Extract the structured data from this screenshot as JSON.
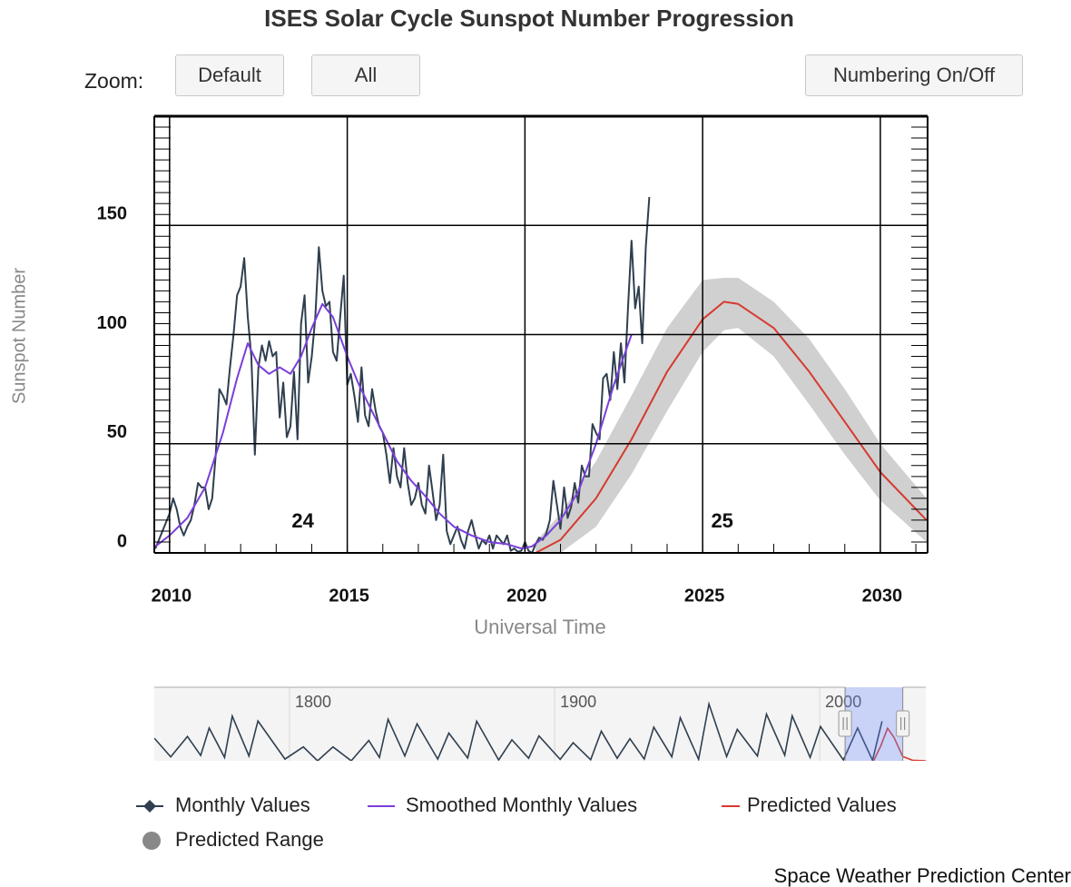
{
  "title": "ISES Solar Cycle Sunspot Number Progression",
  "controls": {
    "zoom": "Zoom:",
    "default": "Default",
    "all": "All",
    "numbering": "Numbering On/Off"
  },
  "footer": "Space Weather Prediction Center",
  "chart_data": [
    {
      "type": "line",
      "xlabel": "Universal Time",
      "ylabel": "Sunspot Number",
      "xlim": [
        2009.57,
        2031.33
      ],
      "ylim": [
        0,
        200
      ],
      "xticks": [
        2010,
        2015,
        2020,
        2025,
        2030
      ],
      "yticks": [
        0,
        50,
        100,
        150
      ],
      "grid": true,
      "annotations": [
        {
          "text": "24",
          "x": 2013.75,
          "y": 14
        },
        {
          "text": "25",
          "x": 2025.55,
          "y": 14
        }
      ],
      "series": [
        {
          "name": "Monthly Values",
          "color": "#2f3f4f",
          "marker": "diamond",
          "x": [
            2009.6,
            2009.8,
            2010.0,
            2010.1,
            2010.2,
            2010.3,
            2010.4,
            2010.5,
            2010.6,
            2010.7,
            2010.8,
            2010.9,
            2011.0,
            2011.1,
            2011.2,
            2011.3,
            2011.4,
            2011.5,
            2011.6,
            2011.7,
            2011.8,
            2011.9,
            2012.0,
            2012.1,
            2012.2,
            2012.3,
            2012.4,
            2012.5,
            2012.6,
            2012.7,
            2012.8,
            2012.9,
            2013.0,
            2013.1,
            2013.2,
            2013.3,
            2013.4,
            2013.5,
            2013.6,
            2013.7,
            2013.8,
            2013.9,
            2014.0,
            2014.1,
            2014.2,
            2014.3,
            2014.4,
            2014.5,
            2014.6,
            2014.7,
            2014.8,
            2014.9,
            2015.0,
            2015.1,
            2015.2,
            2015.3,
            2015.4,
            2015.5,
            2015.6,
            2015.7,
            2015.8,
            2015.9,
            2016.0,
            2016.1,
            2016.2,
            2016.3,
            2016.4,
            2016.5,
            2016.6,
            2016.7,
            2016.8,
            2016.9,
            2017.0,
            2017.1,
            2017.2,
            2017.3,
            2017.4,
            2017.5,
            2017.6,
            2017.7,
            2017.8,
            2017.9,
            2018.0,
            2018.1,
            2018.2,
            2018.3,
            2018.4,
            2018.5,
            2018.6,
            2018.7,
            2018.8,
            2018.9,
            2019.0,
            2019.1,
            2019.2,
            2019.3,
            2019.4,
            2019.5,
            2019.6,
            2019.7,
            2019.8,
            2019.9,
            2020.0,
            2020.1,
            2020.2,
            2020.3,
            2020.4,
            2020.5,
            2020.6,
            2020.7,
            2020.8,
            2020.9,
            2021.0,
            2021.1,
            2021.2,
            2021.3,
            2021.4,
            2021.5,
            2021.6,
            2021.7,
            2021.8,
            2021.9,
            2022.0,
            2022.1,
            2022.2,
            2022.3,
            2022.4,
            2022.5,
            2022.6,
            2022.7,
            2022.8,
            2022.9,
            2023.0,
            2023.1,
            2023.2,
            2023.3,
            2023.4,
            2023.5
          ],
          "values": [
            2,
            10,
            18,
            25,
            20,
            12,
            8,
            12,
            15,
            22,
            32,
            30,
            30,
            20,
            25,
            45,
            75,
            72,
            68,
            85,
            100,
            118,
            122,
            135,
            108,
            90,
            45,
            85,
            95,
            88,
            97,
            90,
            92,
            62,
            78,
            53,
            58,
            83,
            52,
            105,
            118,
            78,
            90,
            108,
            140,
            120,
            113,
            115,
            92,
            88,
            108,
            127,
            77,
            82,
            72,
            60,
            85,
            63,
            58,
            75,
            65,
            58,
            55,
            45,
            32,
            48,
            35,
            30,
            48,
            32,
            22,
            25,
            32,
            22,
            18,
            40,
            28,
            15,
            22,
            45,
            10,
            4,
            8,
            12,
            6,
            2,
            10,
            15,
            8,
            2,
            6,
            4,
            8,
            2,
            8,
            6,
            4,
            8,
            1,
            2,
            0.5,
            1,
            5,
            1,
            0,
            4,
            7,
            6,
            9,
            15,
            33,
            22,
            11,
            30,
            16,
            21,
            32,
            23,
            40,
            35,
            35,
            59,
            55,
            52,
            80,
            82,
            70,
            92,
            75,
            96,
            78,
            112,
            143,
            112,
            122,
            96,
            140,
            163
          ]
        },
        {
          "name": "Smoothed Monthly Values",
          "color": "#7a3fd9",
          "x": [
            2009.6,
            2010.0,
            2010.5,
            2011.0,
            2011.5,
            2011.9,
            2012.2,
            2012.5,
            2012.8,
            2013.1,
            2013.4,
            2013.7,
            2014.0,
            2014.3,
            2014.6,
            2015.0,
            2015.3,
            2015.6,
            2016.0,
            2016.4,
            2016.8,
            2017.2,
            2017.6,
            2018.0,
            2018.5,
            2019.0,
            2019.5,
            2019.9,
            2020.2,
            2020.6,
            2021.0,
            2021.5,
            2022.0,
            2022.5,
            2023.0
          ],
          "values": [
            3,
            8,
            16,
            30,
            55,
            80,
            96,
            86,
            82,
            85,
            82,
            90,
            103,
            114,
            108,
            90,
            78,
            68,
            55,
            42,
            33,
            26,
            18,
            12,
            8,
            5,
            4,
            2,
            3,
            8,
            15,
            28,
            50,
            77,
            100
          ]
        },
        {
          "name": "Predicted Values",
          "color": "#d63a2f",
          "x": [
            2020.3,
            2021,
            2022,
            2023,
            2024,
            2025,
            2025.6,
            2026,
            2027,
            2028,
            2029,
            2030,
            2031.3
          ],
          "values": [
            0,
            6,
            25,
            52,
            83,
            107,
            115,
            114,
            103,
            83,
            60,
            37,
            15
          ]
        },
        {
          "name": "Predicted Range",
          "color": "#c8c8c8",
          "type": "arearange",
          "x": [
            2020.3,
            2021,
            2022,
            2023,
            2024,
            2025,
            2025.6,
            2026,
            2027,
            2028,
            2029,
            2030,
            2031.3
          ],
          "low": [
            0,
            0,
            12,
            36,
            65,
            92,
            102,
            103,
            90,
            68,
            45,
            24,
            5
          ],
          "high": [
            5,
            18,
            42,
            72,
            103,
            125,
            126,
            126,
            115,
            98,
            75,
            50,
            25
          ]
        }
      ]
    },
    {
      "type": "line",
      "xlim": [
        1749,
        2040
      ],
      "ylim": [
        0,
        260
      ],
      "xticks": [
        1800,
        1900,
        2000
      ],
      "series": [
        {
          "color": "#2f3f4f",
          "x": [
            1749,
            1755.2,
            1761.5,
            1766.5,
            1769.7,
            1775.5,
            1778.4,
            1784.7,
            1788.1,
            1798.3,
            1805.2,
            1810.6,
            1816.4,
            1823.3,
            1829.9,
            1833.9,
            1837.2,
            1843.5,
            1848.1,
            1855.9,
            1860.1,
            1867.2,
            1870.6,
            1878.9,
            1883.9,
            1890.2,
            1894.1,
            1902.1,
            1907,
            1913.6,
            1917.6,
            1923.6,
            1928.4,
            1933.8,
            1937.4,
            1944.2,
            1947.4,
            1954.3,
            1958.2,
            1964.9,
            1968.9,
            1976.5,
            1979.9,
            1986.8,
            1989.6,
            1996.4,
            2000.3,
            2008.9,
            2014.3,
            2019.9,
            2023.5
          ],
          "values": [
            80,
            14,
            86,
            19,
            116,
            12,
            158,
            17,
            141,
            6,
            49,
            0,
            49,
            0,
            72,
            12,
            147,
            17,
            131,
            6,
            98,
            10,
            140,
            3,
            74,
            9,
            88,
            5,
            64,
            4,
            105,
            9,
            78,
            6,
            119,
            14,
            152,
            5,
            201,
            15,
            111,
            17,
            165,
            20,
            159,
            12,
            121,
            3,
            116,
            2,
            140
          ]
        },
        {
          "color": "#d63a2f",
          "x": [
            2020.3,
            2023,
            2025.6,
            2028,
            2031.3,
            2035,
            2040
          ],
          "values": [
            0,
            52,
            115,
            83,
            15,
            2,
            0
          ]
        }
      ]
    }
  ]
}
